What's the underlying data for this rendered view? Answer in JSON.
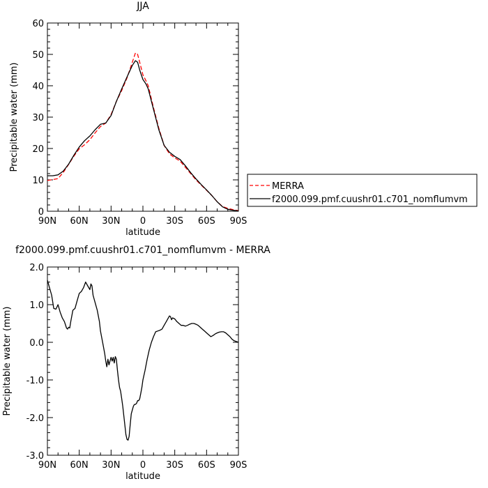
{
  "chart_data": [
    {
      "type": "line",
      "title": "JJA",
      "xlabel": "latitude",
      "ylabel": "Precipitable water (mm)",
      "xlim": [
        90,
        -90
      ],
      "ylim": [
        0,
        60
      ],
      "x_ticks": [
        "90N",
        "60N",
        "30N",
        "0",
        "30S",
        "60S",
        "90S"
      ],
      "x_tick_values": [
        90,
        60,
        30,
        0,
        -30,
        -60,
        -90
      ],
      "y_ticks": [
        "0",
        "10",
        "20",
        "30",
        "40",
        "50",
        "60"
      ],
      "y_tick_values": [
        0,
        10,
        20,
        30,
        40,
        50,
        60
      ],
      "legend": "right",
      "series": [
        {
          "name": "MERRA",
          "color": "#ff0000",
          "style": "dashed",
          "points": [
            [
              90,
              9.8
            ],
            [
              85,
              10.1
            ],
            [
              80,
              10.4
            ],
            [
              75,
              12.4
            ],
            [
              70,
              14.9
            ],
            [
              65,
              17.6
            ],
            [
              60,
              19.9
            ],
            [
              55,
              21.2
            ],
            [
              50,
              22.8
            ],
            [
              45,
              25.0
            ],
            [
              40,
              27.0
            ],
            [
              35,
              28.1
            ],
            [
              30,
              30.8
            ],
            [
              25,
              35.0
            ],
            [
              20,
              38.5
            ],
            [
              15,
              42.5
            ],
            [
              10,
              47.5
            ],
            [
              7,
              50.5
            ],
            [
              5,
              50.0
            ],
            [
              3,
              47.5
            ],
            [
              0,
              43.5
            ],
            [
              -3,
              41.5
            ],
            [
              -5,
              40.0
            ],
            [
              -10,
              33.0
            ],
            [
              -15,
              26.5
            ],
            [
              -20,
              21.0
            ],
            [
              -25,
              18.3
            ],
            [
              -30,
              17.0
            ],
            [
              -35,
              16.0
            ],
            [
              -40,
              14.0
            ],
            [
              -45,
              12.0
            ],
            [
              -50,
              10.0
            ],
            [
              -55,
              8.3
            ],
            [
              -60,
              6.7
            ],
            [
              -65,
              5.0
            ],
            [
              -70,
              3.0
            ],
            [
              -75,
              1.5
            ],
            [
              -80,
              0.9
            ],
            [
              -85,
              0.5
            ],
            [
              -88,
              0.3
            ],
            [
              -90,
              0.2
            ]
          ]
        },
        {
          "name": "f2000.099.pmf.cuushr01.c701_nomflumvm",
          "color": "#000000",
          "style": "solid",
          "points": [
            [
              90,
              11.3
            ],
            [
              85,
              11.3
            ],
            [
              80,
              11.6
            ],
            [
              75,
              12.8
            ],
            [
              70,
              15.0
            ],
            [
              65,
              17.9
            ],
            [
              60,
              20.5
            ],
            [
              55,
              22.5
            ],
            [
              50,
              24.0
            ],
            [
              45,
              26.0
            ],
            [
              40,
              27.7
            ],
            [
              35,
              28.1
            ],
            [
              30,
              30.5
            ],
            [
              25,
              35.0
            ],
            [
              20,
              39.0
            ],
            [
              15,
              42.8
            ],
            [
              10,
              46.5
            ],
            [
              7,
              48.0
            ],
            [
              5,
              47.5
            ],
            [
              3,
              45.0
            ],
            [
              0,
              42.0
            ],
            [
              -3,
              40.5
            ],
            [
              -5,
              39.0
            ],
            [
              -10,
              32.5
            ],
            [
              -15,
              26.0
            ],
            [
              -20,
              21.0
            ],
            [
              -25,
              18.8
            ],
            [
              -30,
              17.5
            ],
            [
              -35,
              16.5
            ],
            [
              -40,
              14.5
            ],
            [
              -45,
              12.3
            ],
            [
              -50,
              10.3
            ],
            [
              -55,
              8.5
            ],
            [
              -60,
              6.8
            ],
            [
              -65,
              5.0
            ],
            [
              -70,
              3.0
            ],
            [
              -75,
              1.4
            ],
            [
              -80,
              0.6
            ],
            [
              -85,
              0.3
            ],
            [
              -88,
              0.2
            ],
            [
              -90,
              0.1
            ]
          ]
        }
      ]
    },
    {
      "type": "line",
      "title": "f2000.099.pmf.cuushr01.c701_nomflumvm - MERRA",
      "xlabel": "latitude",
      "ylabel": "Precipitable water (mm)",
      "xlim": [
        90,
        -90
      ],
      "ylim": [
        -3.0,
        2.0
      ],
      "x_ticks": [
        "90N",
        "60N",
        "30N",
        "0",
        "30S",
        "60S",
        "90S"
      ],
      "x_tick_values": [
        90,
        60,
        30,
        0,
        -30,
        -60,
        -90
      ],
      "y_ticks": [
        "-3.0",
        "-2.0",
        "-1.0",
        "0.0",
        "1.0",
        "2.0"
      ],
      "y_tick_values": [
        -3,
        -2,
        -1,
        0,
        1,
        2
      ],
      "series": [
        {
          "color": "#000000",
          "style": "solid",
          "points": [
            [
              90,
              1.65
            ],
            [
              88,
              1.45
            ],
            [
              86,
              1.25
            ],
            [
              84,
              0.9
            ],
            [
              82,
              0.88
            ],
            [
              80,
              1.0
            ],
            [
              78,
              0.8
            ],
            [
              76,
              0.65
            ],
            [
              74,
              0.55
            ],
            [
              72,
              0.38
            ],
            [
              71,
              0.35
            ],
            [
              70,
              0.4
            ],
            [
              69,
              0.38
            ],
            [
              68,
              0.55
            ],
            [
              66,
              0.85
            ],
            [
              64,
              0.9
            ],
            [
              62,
              1.1
            ],
            [
              60,
              1.3
            ],
            [
              58,
              1.35
            ],
            [
              56,
              1.45
            ],
            [
              54,
              1.6
            ],
            [
              53,
              1.55
            ],
            [
              52,
              1.5
            ],
            [
              50,
              1.4
            ],
            [
              49,
              1.55
            ],
            [
              48,
              1.5
            ],
            [
              47,
              1.25
            ],
            [
              45,
              1.05
            ],
            [
              43,
              0.85
            ],
            [
              41,
              0.55
            ],
            [
              40,
              0.3
            ],
            [
              38,
              0.0
            ],
            [
              36,
              -0.3
            ],
            [
              35,
              -0.5
            ],
            [
              34,
              -0.65
            ],
            [
              33,
              -0.45
            ],
            [
              32,
              -0.6
            ],
            [
              31,
              -0.5
            ],
            [
              30,
              -0.4
            ],
            [
              29,
              -0.5
            ],
            [
              28,
              -0.4
            ],
            [
              27,
              -0.55
            ],
            [
              26,
              -0.38
            ],
            [
              25,
              -0.45
            ],
            [
              24,
              -0.75
            ],
            [
              23,
              -1.0
            ],
            [
              22,
              -1.2
            ],
            [
              21,
              -1.3
            ],
            [
              20,
              -1.5
            ],
            [
              19,
              -1.7
            ],
            [
              18,
              -1.95
            ],
            [
              17,
              -2.2
            ],
            [
              16,
              -2.45
            ],
            [
              15,
              -2.58
            ],
            [
              14,
              -2.6
            ],
            [
              13,
              -2.5
            ],
            [
              12,
              -2.2
            ],
            [
              11,
              -1.9
            ],
            [
              10,
              -1.8
            ],
            [
              9,
              -1.7
            ],
            [
              8,
              -1.65
            ],
            [
              7,
              -1.65
            ],
            [
              6,
              -1.62
            ],
            [
              5,
              -1.55
            ],
            [
              4,
              -1.55
            ],
            [
              3,
              -1.5
            ],
            [
              2,
              -1.35
            ],
            [
              1,
              -1.2
            ],
            [
              0,
              -1.0
            ],
            [
              -2,
              -0.75
            ],
            [
              -4,
              -0.45
            ],
            [
              -6,
              -0.2
            ],
            [
              -8,
              0.0
            ],
            [
              -10,
              0.15
            ],
            [
              -12,
              0.28
            ],
            [
              -14,
              0.3
            ],
            [
              -16,
              0.32
            ],
            [
              -18,
              0.35
            ],
            [
              -20,
              0.45
            ],
            [
              -22,
              0.55
            ],
            [
              -24,
              0.65
            ],
            [
              -25,
              0.7
            ],
            [
              -26,
              0.68
            ],
            [
              -27,
              0.6
            ],
            [
              -28,
              0.65
            ],
            [
              -30,
              0.62
            ],
            [
              -32,
              0.55
            ],
            [
              -34,
              0.5
            ],
            [
              -36,
              0.45
            ],
            [
              -38,
              0.45
            ],
            [
              -40,
              0.43
            ],
            [
              -42,
              0.45
            ],
            [
              -44,
              0.48
            ],
            [
              -46,
              0.5
            ],
            [
              -48,
              0.5
            ],
            [
              -50,
              0.48
            ],
            [
              -52,
              0.45
            ],
            [
              -54,
              0.4
            ],
            [
              -56,
              0.35
            ],
            [
              -58,
              0.3
            ],
            [
              -60,
              0.25
            ],
            [
              -62,
              0.2
            ],
            [
              -64,
              0.15
            ],
            [
              -66,
              0.18
            ],
            [
              -68,
              0.22
            ],
            [
              -70,
              0.25
            ],
            [
              -72,
              0.27
            ],
            [
              -74,
              0.28
            ],
            [
              -76,
              0.28
            ],
            [
              -78,
              0.25
            ],
            [
              -80,
              0.2
            ],
            [
              -82,
              0.15
            ],
            [
              -84,
              0.08
            ],
            [
              -86,
              0.04
            ],
            [
              -88,
              0.02
            ],
            [
              -90,
              0.0
            ]
          ]
        }
      ]
    }
  ]
}
